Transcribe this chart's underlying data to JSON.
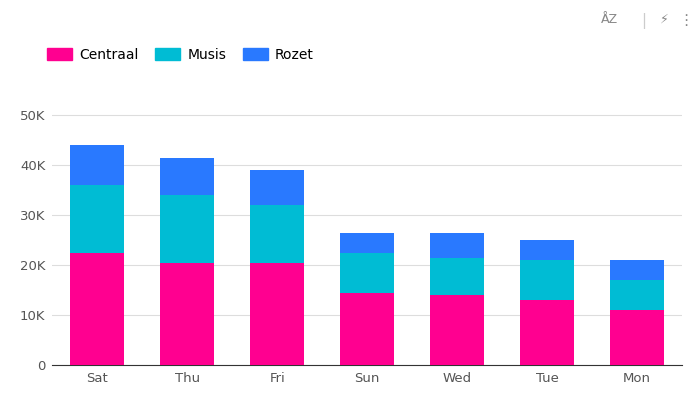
{
  "categories": [
    "Sat",
    "Thu",
    "Fri",
    "Sun",
    "Wed",
    "Tue",
    "Mon"
  ],
  "centraal": [
    22500,
    20500,
    20500,
    14500,
    14000,
    13000,
    11000
  ],
  "musis": [
    13500,
    13500,
    11500,
    8000,
    7500,
    8000,
    6000
  ],
  "rozet": [
    8000,
    7500,
    7000,
    4000,
    5000,
    4000,
    4000
  ],
  "color_centraal": "#FF0090",
  "color_musis": "#00BCD4",
  "color_rozet": "#2979FF",
  "legend_labels": [
    "Centraal",
    "Musis",
    "Rozet"
  ],
  "ylim": [
    0,
    52000
  ],
  "yticks": [
    0,
    10000,
    20000,
    30000,
    40000,
    50000
  ],
  "ytick_labels": [
    "0",
    "10K",
    "20K",
    "30K",
    "40K",
    "50K"
  ],
  "background_color": "#ffffff",
  "grid_color": "#dddddd",
  "tick_color": "#555555",
  "bar_width": 0.6,
  "toolbar_text": "ÅZ  ⚡  ⋮",
  "separator_color": "#cccccc"
}
